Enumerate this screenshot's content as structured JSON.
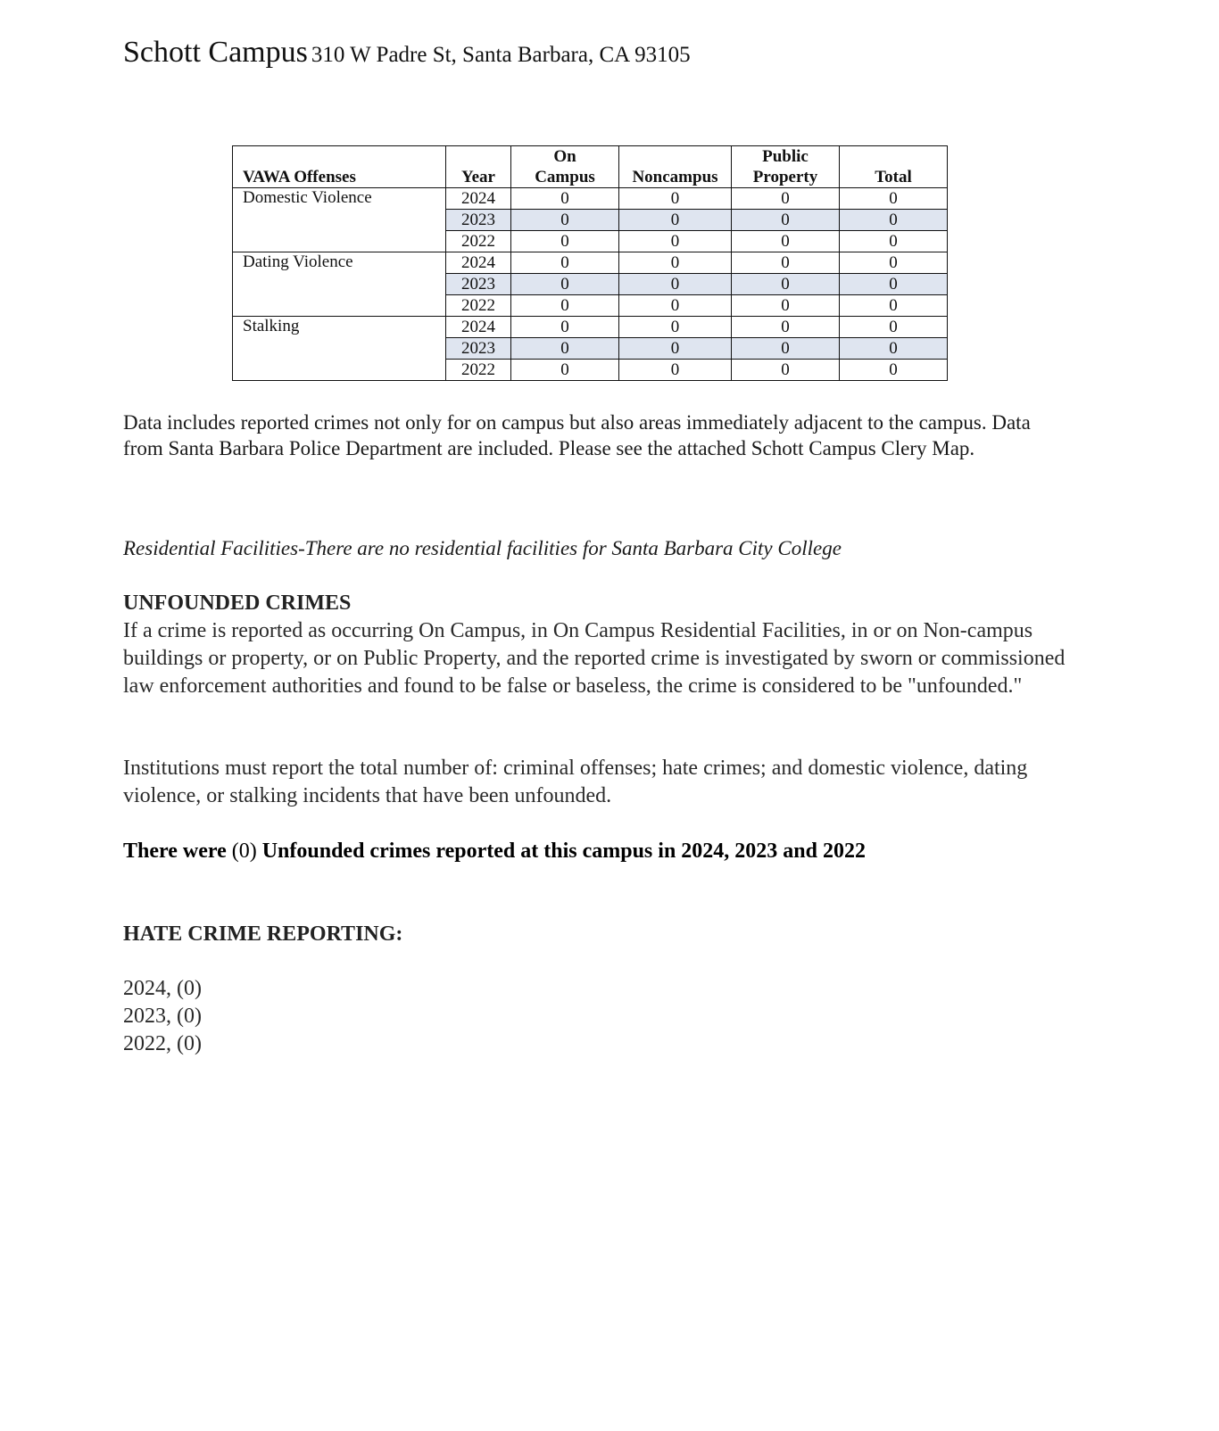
{
  "title": {
    "campus": "Schott Campus",
    "address": "310 W Padre St, Santa Barbara, CA 93105"
  },
  "table": {
    "headers": {
      "offenses": "VAWA Offenses",
      "year": "Year",
      "on_campus": "On Campus",
      "noncampus": "Noncampus",
      "public_property": "Public Property",
      "total": "Total"
    },
    "groups": [
      {
        "offense": "Domestic Violence",
        "rows": [
          {
            "year": "2024",
            "on": "0",
            "non": "0",
            "pub": "0",
            "total": "0"
          },
          {
            "year": "2023",
            "on": "0",
            "non": "0",
            "pub": "0",
            "total": "0"
          },
          {
            "year": "2022",
            "on": "0",
            "non": "0",
            "pub": "0",
            "total": "0"
          }
        ]
      },
      {
        "offense": "Dating Violence",
        "rows": [
          {
            "year": "2024",
            "on": "0",
            "non": "0",
            "pub": "0",
            "total": "0"
          },
          {
            "year": "2023",
            "on": "0",
            "non": "0",
            "pub": "0",
            "total": "0"
          },
          {
            "year": "2022",
            "on": "0",
            "non": "0",
            "pub": "0",
            "total": "0"
          }
        ]
      },
      {
        "offense": "Stalking",
        "rows": [
          {
            "year": "2024",
            "on": "0",
            "non": "0",
            "pub": "0",
            "total": "0"
          },
          {
            "year": "2023",
            "on": "0",
            "non": "0",
            "pub": "0",
            "total": "0"
          },
          {
            "year": "2022",
            "on": "0",
            "non": "0",
            "pub": "0",
            "total": "0"
          }
        ]
      }
    ],
    "shade_color": "#dfe5f0"
  },
  "note": "Data includes reported crimes not only for on campus but also areas immediately adjacent to the campus. Data from Santa Barbara Police Department are included.  Please see the attached Schott Campus Clery Map.",
  "residential": "Residential Facilities-There are no residential facilities for Santa Barbara City College",
  "unfounded": {
    "heading": "UNFOUNDED CRIMES",
    "para1": "If a crime is reported as occurring On Campus, in On Campus Residential Facilities, in or on Non-campus buildings or property, or on Public Property, and the reported crime is investigated by sworn or commissioned law enforcement authorities and found to be false or baseless, the crime is considered to be \"unfounded.\"",
    "para2": "Institutions must report the total number of: criminal offenses; hate crimes; and domestic violence, dating violence, or stalking incidents that have been unfounded.",
    "statement_a": "There were",
    "statement_count": "(0)",
    "statement_b": "Unfounded crimes reported at this campus in 2024, 2023 and 2022"
  },
  "hate": {
    "heading": "HATE CRIME REPORTING:",
    "years": [
      "2024, (0)",
      "2023, (0)",
      "2022, (0)"
    ]
  }
}
